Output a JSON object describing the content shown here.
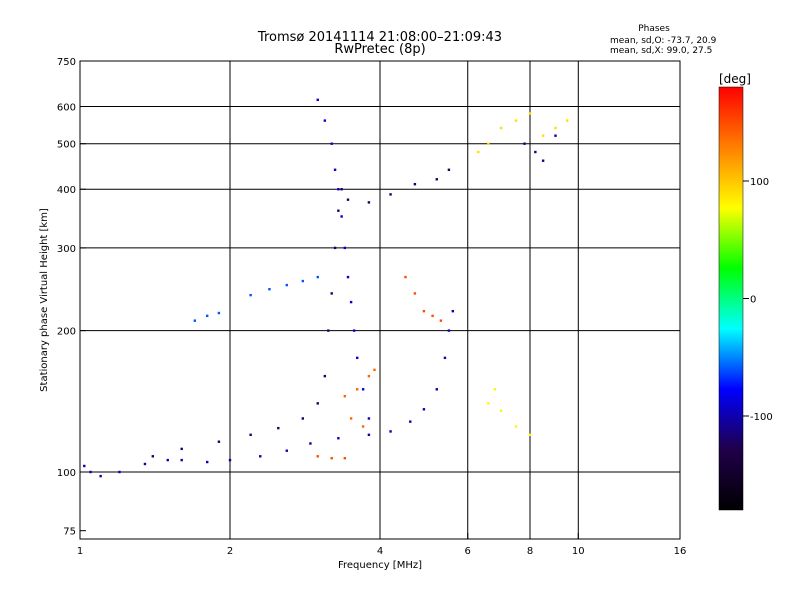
{
  "chart_data": {
    "type": "scatter",
    "title": "Tromsø 20141114 21:08:00–21:09:43",
    "subtitle": "RwPretec (8p)",
    "stats": {
      "heading": "Phases",
      "line_o": "mean, sd,O: -73.7, 20.9",
      "line_x": "mean, sd,X:  99.0, 27.5"
    },
    "xlabel": "Frequency [MHz]",
    "ylabel": "Stationary phase Virtual Height [km]",
    "x_scale": "log",
    "y_scale": "log",
    "xlim": [
      1,
      16
    ],
    "ylim": [
      72,
      750
    ],
    "xticks": [
      1,
      2,
      4,
      6,
      8,
      10,
      16
    ],
    "xtick_labels": [
      "1",
      "2",
      "4",
      "6",
      "8",
      "10",
      "16"
    ],
    "yticks": [
      75,
      100,
      200,
      300,
      400,
      500,
      600,
      750
    ],
    "ytick_labels": [
      "75",
      "100",
      "200",
      "300",
      "400",
      "500",
      "600",
      "750"
    ],
    "grid": true,
    "grid_x": [
      2,
      4,
      6,
      8,
      10
    ],
    "grid_y": [
      100,
      200,
      300,
      400,
      500,
      600
    ],
    "colorbar": {
      "label": "[deg]",
      "range": [
        -180,
        180
      ],
      "ticks": [
        100,
        0,
        -100
      ],
      "tick_labels": [
        "100",
        "0",
        "-100"
      ],
      "colors": [
        "#ff0000",
        "#ff8000",
        "#ffff00",
        "#00ff00",
        "#00ffff",
        "#0000ff",
        "#20004a",
        "#000000"
      ]
    },
    "series": [
      {
        "values": [
          [
            1.02,
            103
          ],
          [
            1.05,
            100
          ],
          [
            1.1,
            98
          ],
          [
            1.2,
            100
          ],
          [
            1.35,
            104
          ],
          [
            1.5,
            106
          ],
          [
            1.6,
            106
          ],
          [
            1.8,
            105
          ],
          [
            2.0,
            106
          ],
          [
            2.3,
            108
          ],
          [
            2.6,
            111
          ],
          [
            2.9,
            115
          ],
          [
            3.3,
            118
          ],
          [
            3.8,
            120
          ],
          [
            4.2,
            122
          ],
          [
            4.6,
            128
          ],
          [
            4.9,
            136
          ],
          [
            5.2,
            150
          ],
          [
            5.4,
            175
          ],
          [
            5.5,
            200
          ],
          [
            5.6,
            220
          ]
        ],
        "phase": -100
      },
      {
        "values": [
          [
            1.4,
            108
          ],
          [
            1.6,
            112
          ],
          [
            1.9,
            116
          ],
          [
            2.2,
            120
          ],
          [
            2.5,
            124
          ],
          [
            2.8,
            130
          ],
          [
            3.0,
            140
          ],
          [
            3.1,
            160
          ],
          [
            3.15,
            200
          ],
          [
            3.2,
            240
          ],
          [
            3.25,
            300
          ],
          [
            3.3,
            360
          ],
          [
            3.35,
            400
          ],
          [
            3.45,
            380
          ],
          [
            3.8,
            375
          ],
          [
            4.2,
            390
          ],
          [
            4.7,
            410
          ],
          [
            5.2,
            420
          ],
          [
            5.5,
            440
          ]
        ],
        "phase": -120
      },
      {
        "values": [
          [
            1.7,
            210
          ],
          [
            1.8,
            215
          ],
          [
            1.9,
            218
          ],
          [
            2.2,
            238
          ],
          [
            2.4,
            245
          ],
          [
            2.6,
            250
          ],
          [
            2.8,
            255
          ],
          [
            3.0,
            260
          ]
        ],
        "phase": -60
      },
      {
        "values": [
          [
            3.0,
            620
          ],
          [
            3.1,
            560
          ],
          [
            3.2,
            500
          ],
          [
            3.25,
            440
          ],
          [
            3.3,
            400
          ],
          [
            3.35,
            350
          ],
          [
            3.4,
            300
          ],
          [
            3.45,
            260
          ],
          [
            3.5,
            230
          ],
          [
            3.55,
            200
          ],
          [
            3.6,
            175
          ],
          [
            3.7,
            150
          ],
          [
            3.8,
            130
          ]
        ],
        "phase": -90
      },
      {
        "values": [
          [
            3.4,
            145
          ],
          [
            3.6,
            150
          ],
          [
            3.8,
            160
          ],
          [
            3.9,
            165
          ],
          [
            3.5,
            130
          ],
          [
            3.7,
            125
          ]
        ],
        "phase": 140
      },
      {
        "values": [
          [
            4.5,
            260
          ],
          [
            4.7,
            240
          ],
          [
            4.9,
            220
          ],
          [
            5.1,
            215
          ],
          [
            5.3,
            210
          ]
        ],
        "phase": 150
      },
      {
        "values": [
          [
            6.3,
            480
          ],
          [
            6.6,
            500
          ],
          [
            7.0,
            540
          ],
          [
            7.5,
            560
          ],
          [
            8.0,
            580
          ],
          [
            8.5,
            520
          ],
          [
            9.0,
            540
          ],
          [
            9.5,
            560
          ]
        ],
        "phase": 90
      },
      {
        "values": [
          [
            6.6,
            140
          ],
          [
            7.0,
            135
          ],
          [
            7.5,
            125
          ],
          [
            8.0,
            120
          ],
          [
            6.8,
            150
          ]
        ],
        "phase": 80
      },
      {
        "values": [
          [
            3.0,
            108
          ],
          [
            3.2,
            107
          ],
          [
            3.4,
            107
          ]
        ],
        "phase": 150
      },
      {
        "values": [
          [
            7.8,
            500
          ],
          [
            8.2,
            480
          ],
          [
            8.5,
            460
          ],
          [
            9.0,
            520
          ]
        ],
        "phase": -110
      }
    ]
  }
}
